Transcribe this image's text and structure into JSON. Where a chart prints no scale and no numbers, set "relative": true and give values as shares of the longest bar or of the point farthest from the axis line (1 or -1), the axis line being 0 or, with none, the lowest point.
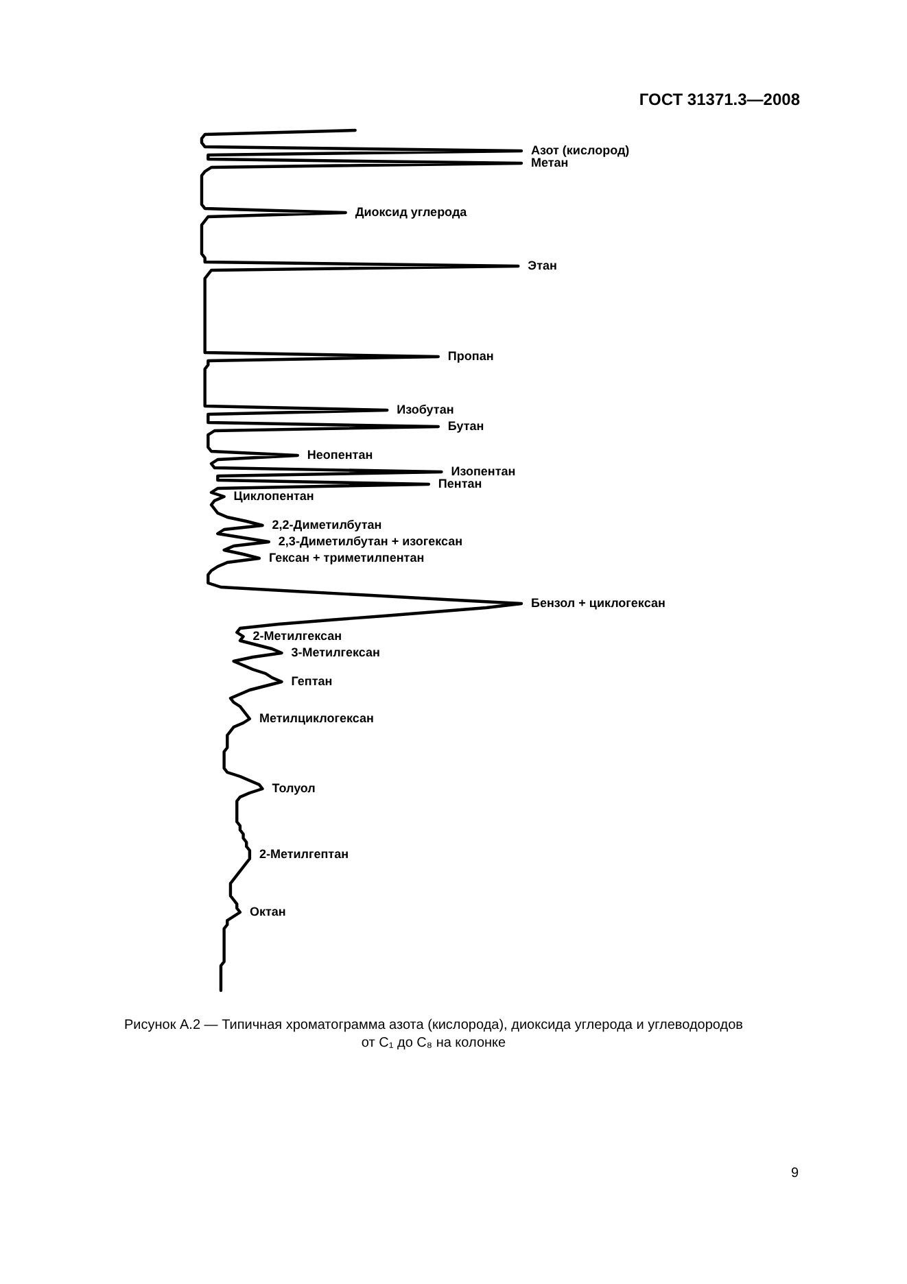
{
  "chart_data": {
    "type": "line",
    "orientation": "horizontal",
    "relative": true,
    "categories": [
      null,
      null,
      null,
      null,
      null,
      "Азот (кислород)",
      null,
      null,
      "Метан",
      null,
      null,
      null,
      null,
      null,
      null,
      null,
      null,
      null,
      null,
      null,
      "Диоксид углерода",
      null,
      null,
      null,
      null,
      null,
      null,
      null,
      null,
      null,
      null,
      null,
      null,
      "Этан",
      null,
      null,
      null,
      null,
      null,
      null,
      null,
      null,
      null,
      null,
      null,
      null,
      null,
      null,
      null,
      null,
      null,
      null,
      null,
      null,
      null,
      "Пропан",
      null,
      null,
      null,
      null,
      null,
      null,
      null,
      null,
      null,
      null,
      null,
      null,
      "Изобутан",
      null,
      null,
      null,
      "Бутан",
      null,
      null,
      null,
      null,
      null,
      null,
      "Неопентан",
      null,
      null,
      null,
      "Изопентан",
      null,
      null,
      "Пентан",
      null,
      null,
      "Циклопентан",
      null,
      null,
      null,
      null,
      null,
      null,
      "2,2-Диметилбутан",
      null,
      null,
      null,
      "2,3-Диметилбутан + изогексан",
      null,
      null,
      null,
      "Гексан + триметилпентан",
      null,
      null,
      null,
      null,
      null,
      null,
      null,
      null,
      null,
      null,
      "Бензол + циклогексан",
      null,
      null,
      null,
      null,
      null,
      null,
      null,
      "2-Метилгексан",
      null,
      null,
      null,
      "3-Метилгексан",
      null,
      null,
      null,
      null,
      null,
      null,
      "Гептан",
      null,
      null,
      null,
      null,
      null,
      null,
      null,
      null,
      "Метилциклогексан",
      null,
      null,
      null,
      null,
      null,
      null,
      null,
      null,
      null,
      null,
      null,
      null,
      null,
      null,
      null,
      null,
      "Толуол",
      null,
      null,
      null,
      null,
      null,
      null,
      null,
      null,
      null,
      null,
      null,
      null,
      null,
      null,
      null,
      "2-Метилгептан",
      null,
      null,
      null,
      null,
      null,
      null,
      null,
      null,
      null,
      null,
      null,
      null,
      null,
      "Октан",
      null,
      null,
      null,
      null,
      null,
      null,
      null,
      null,
      null,
      null,
      null,
      null,
      null,
      null,
      null,
      null,
      null,
      null,
      null
    ],
    "series": [
      {
        "color": "#000000",
        "values": [
          0.48,
          0.01,
          0,
          0,
          0.01,
          1,
          0.02,
          0.02,
          1,
          0.03,
          0.01,
          0,
          0,
          0,
          0,
          0,
          0,
          0,
          0,
          0.01,
          0.45,
          0.02,
          0.01,
          0,
          0,
          0,
          0,
          0,
          0,
          0,
          0,
          0.01,
          0.01,
          0.99,
          0.03,
          0.02,
          0.01,
          0.01,
          0.01,
          0.01,
          0.01,
          0.01,
          0.01,
          0.01,
          0.01,
          0.01,
          0.01,
          0.01,
          0.01,
          0.01,
          0.01,
          0.01,
          0.01,
          0.01,
          0.01,
          0.74,
          0.02,
          0.02,
          0.01,
          0.01,
          0.01,
          0.01,
          0.01,
          0.01,
          0.01,
          0.01,
          0.01,
          0.01,
          0.58,
          0.02,
          0.02,
          0.02,
          0.74,
          0.04,
          0.02,
          0.02,
          0.02,
          0.02,
          0.03,
          0.3,
          0.05,
          0.03,
          0.04,
          0.75,
          0.05,
          0.05,
          0.71,
          0.05,
          0.03,
          0.07,
          0.04,
          0.03,
          0.04,
          0.05,
          0.08,
          0.14,
          0.19,
          0.07,
          0.05,
          0.13,
          0.21,
          0.1,
          0.07,
          0.13,
          0.18,
          0.08,
          0.05,
          0.03,
          0.02,
          0.02,
          0.02,
          0.06,
          0.29,
          0.53,
          0.76,
          1,
          0.89,
          0.73,
          0.57,
          0.4,
          0.24,
          0.12,
          0.11,
          0.13,
          0.12,
          0.17,
          0.22,
          0.25,
          0.16,
          0.1,
          0.13,
          0.16,
          0.2,
          0.22,
          0.25,
          0.2,
          0.15,
          0.12,
          0.09,
          0.1,
          0.12,
          0.13,
          0.14,
          0.15,
          0.13,
          0.1,
          0.09,
          0.08,
          0.08,
          0.08,
          0.08,
          0.07,
          0.07,
          0.07,
          0.07,
          0.07,
          0.08,
          0.12,
          0.15,
          0.18,
          0.19,
          0.15,
          0.12,
          0.11,
          0.11,
          0.11,
          0.11,
          0.11,
          0.11,
          0.12,
          0.12,
          0.13,
          0.13,
          0.14,
          0.14,
          0.15,
          0.15,
          0.15,
          0.14,
          0.13,
          0.12,
          0.11,
          0.1,
          0.09,
          0.09,
          0.09,
          0.09,
          0.1,
          0.11,
          0.11,
          0.12,
          0.1,
          0.08,
          0.08,
          0.07,
          0.07,
          0.07,
          0.07,
          0.07,
          0.07,
          0.07,
          0.07,
          0.07,
          0.06,
          0.06,
          0.06,
          0.06,
          0.06,
          0.06,
          0.06
        ]
      }
    ],
    "annotations": [
      "ГОСТ 31371.3—2008",
      "Рисунок А.2 — Типичная хроматограмма азота (кислорода), диоксида углерода и углеводородов от C₁ до C₈ на колонке",
      "9"
    ]
  }
}
